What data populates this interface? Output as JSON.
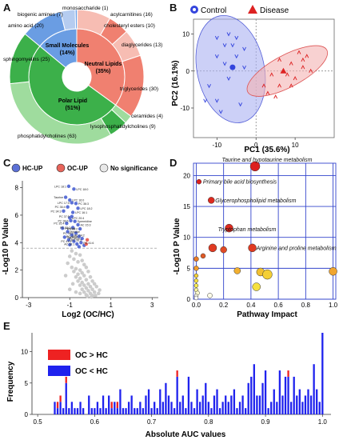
{
  "panels": {
    "A": "A",
    "B": "B",
    "C": "C",
    "D": "D",
    "E": "E"
  },
  "colors": {
    "small_molecules": "#6a9de3",
    "neutral_lipids": "#f08070",
    "polar_lipid": "#3cb04a",
    "control": "#3344dd",
    "disease": "#dd2222",
    "hc_up": "#5b70d6",
    "oc_up": "#e8645a",
    "no_sig": "#cccccc",
    "grid_blue": "#3344cc",
    "auc_oc_gt_hc": "#ee2222",
    "auc_oc_lt_hc": "#1f22ee"
  },
  "chart_data": [
    {
      "type": "pie",
      "panel": "A",
      "inner_ring": [
        {
          "label": "Small Molecules",
          "percent": "(14%)",
          "value": 14
        },
        {
          "label": "Neutral Lipids",
          "percent": "(35%)",
          "value": 35
        },
        {
          "label": "Polar Lipid",
          "percent": "(51%)",
          "value": 51
        }
      ],
      "outer_ring": [
        {
          "label": "amino acid (20)",
          "value": 20,
          "group": "small"
        },
        {
          "label": "biogenic amines (7)",
          "value": 7,
          "group": "small"
        },
        {
          "label": "monosaccharide (1)",
          "value": 1,
          "group": "small"
        },
        {
          "label": "acylcarnitines (16)",
          "value": 16,
          "group": "neutral"
        },
        {
          "label": "cholesteryl esters (10)",
          "value": 10,
          "group": "neutral"
        },
        {
          "label": "diaglycerides (13)",
          "value": 13,
          "group": "neutral"
        },
        {
          "label": "triglycerides (30)",
          "value": 30,
          "group": "neutral"
        },
        {
          "label": "ceramides (4)",
          "value": 4,
          "group": "polar"
        },
        {
          "label": "lysophosphatidylcholines (9)",
          "value": 9,
          "group": "polar"
        },
        {
          "label": "phosphatidylcholines (63)",
          "value": 63,
          "group": "polar"
        },
        {
          "label": "sphingomyelins (25)",
          "value": 25,
          "group": "polar"
        }
      ]
    },
    {
      "type": "scatter",
      "panel": "B",
      "legend": [
        "Control",
        "Disease"
      ],
      "xlabel": "PC1 (35.6%)",
      "ylabel": "PC2 (16.1%)",
      "xlim": [
        -16,
        20
      ],
      "ylim": [
        -18,
        14
      ],
      "xticks": [
        -10,
        0,
        10
      ],
      "yticks": [
        -10,
        0,
        10
      ],
      "series": [
        {
          "name": "Control",
          "centroid": [
            -6,
            1
          ],
          "points": [
            [
              -10,
              9
            ],
            [
              -7,
              10
            ],
            [
              -5,
              9
            ],
            [
              -8,
              7
            ],
            [
              -6,
              7
            ],
            [
              -3,
              6
            ],
            [
              -10,
              4
            ],
            [
              -5,
              4
            ],
            [
              -8,
              2
            ],
            [
              -7,
              -2
            ],
            [
              -12,
              -4
            ],
            [
              -13,
              -8
            ],
            [
              -10,
              -8
            ],
            [
              -4,
              -9
            ],
            [
              -9,
              -11
            ],
            [
              -3,
              1
            ]
          ]
        },
        {
          "name": "Disease",
          "centroid": [
            7,
            0
          ],
          "points": [
            [
              11,
              5
            ],
            [
              13,
              4
            ],
            [
              6,
              3
            ],
            [
              9,
              2
            ],
            [
              12,
              1
            ],
            [
              4,
              -1
            ],
            [
              8,
              -1
            ],
            [
              10,
              -2
            ],
            [
              14,
              0
            ],
            [
              2,
              -4
            ],
            [
              6,
              -4
            ],
            [
              9,
              -4
            ],
            [
              3,
              -6
            ],
            [
              5,
              -7
            ],
            [
              12,
              3
            ]
          ]
        }
      ]
    },
    {
      "type": "scatter",
      "panel": "C",
      "legend": [
        "HC-UP",
        "OC-UP",
        "No significance"
      ],
      "xlabel": "Log2 (OC/HC)",
      "ylabel": "-Log10 P Value",
      "xlim": [
        -3.3,
        3.3
      ],
      "ylim": [
        0,
        8.5
      ],
      "xticks": [
        -3,
        -1,
        1,
        3
      ],
      "yticks": [
        0,
        2,
        4,
        6,
        8
      ],
      "threshold": 3.6,
      "labels": [
        "LPC 18:1",
        "LPC 18:0",
        "Taurine",
        "LPC 16:0",
        "LPC 17:0",
        "PC 36:3",
        "PC 36:4",
        "LPC 18:2",
        "PC 34:3",
        "LPC 16:1",
        "PC 37:5",
        "LPC 20:4",
        "PC 38:6",
        "Spermidine",
        "PC 35:4",
        "AC 15:3",
        "PC 32:2",
        "PC 40:6",
        "PC 36:2",
        "Hexose",
        "PC 38:4",
        "PC 34:2",
        "PC 40:5",
        "SM 22:1",
        "PC 40:4",
        "PC 36:3",
        "PC 41:5",
        "PC 41:6",
        "AC 16:1"
      ],
      "hc_up": [
        [
          -1.05,
          8.1
        ],
        [
          -0.8,
          7.9
        ],
        [
          -1.2,
          7.3
        ],
        [
          -1.0,
          7.1
        ],
        [
          -0.9,
          6.9
        ],
        [
          -0.7,
          6.85
        ],
        [
          -1.1,
          6.6
        ],
        [
          -0.6,
          6.5
        ],
        [
          -1.3,
          6.3
        ],
        [
          -0.85,
          6.2
        ],
        [
          -0.9,
          5.9
        ],
        [
          -1.0,
          5.8
        ],
        [
          -0.95,
          5.6
        ],
        [
          -0.75,
          5.55
        ],
        [
          -1.15,
          5.4
        ],
        [
          -0.6,
          5.3
        ],
        [
          -0.85,
          5.1
        ],
        [
          -1.35,
          5.05
        ],
        [
          -0.5,
          5.0
        ],
        [
          -1.1,
          4.8
        ],
        [
          -0.7,
          4.7
        ],
        [
          -0.9,
          4.55
        ],
        [
          -0.55,
          4.45
        ],
        [
          -1.25,
          4.4
        ],
        [
          -0.4,
          4.3
        ],
        [
          -1.05,
          4.2
        ],
        [
          -0.8,
          4.1
        ],
        [
          -0.45,
          4.0
        ],
        [
          -0.65,
          3.9
        ],
        [
          -1.0,
          3.85
        ],
        [
          -0.3,
          3.8
        ],
        [
          -0.55,
          3.7
        ]
      ],
      "oc_up": [
        [
          -0.15,
          4.2
        ],
        [
          -0.2,
          3.9
        ]
      ],
      "no_sig": [
        [
          -0.9,
          3.4
        ],
        [
          -0.7,
          3.2
        ],
        [
          -1.0,
          3.0
        ],
        [
          -0.5,
          3.1
        ],
        [
          -0.8,
          2.8
        ],
        [
          -0.6,
          2.6
        ],
        [
          -1.1,
          2.5
        ],
        [
          -0.4,
          2.7
        ],
        [
          -0.3,
          2.4
        ],
        [
          -0.9,
          2.2
        ],
        [
          -0.7,
          2.1
        ],
        [
          -0.5,
          2.0
        ],
        [
          -0.2,
          2.2
        ],
        [
          -0.8,
          1.9
        ],
        [
          -0.6,
          1.7
        ],
        [
          -0.4,
          1.8
        ],
        [
          -0.1,
          1.9
        ],
        [
          -0.3,
          1.6
        ],
        [
          -0.7,
          1.5
        ],
        [
          -0.5,
          1.4
        ],
        [
          0.0,
          1.5
        ],
        [
          -0.2,
          1.3
        ],
        [
          0.1,
          1.2
        ],
        [
          -0.6,
          1.2
        ],
        [
          -0.4,
          1.1
        ],
        [
          -0.1,
          1.0
        ],
        [
          0.2,
          1.0
        ],
        [
          -0.3,
          0.9
        ],
        [
          0.0,
          0.8
        ],
        [
          -0.5,
          0.9
        ],
        [
          -0.2,
          0.7
        ],
        [
          0.1,
          0.6
        ],
        [
          0.3,
          0.8
        ],
        [
          -0.4,
          0.6
        ],
        [
          -0.1,
          0.5
        ],
        [
          0.2,
          0.4
        ],
        [
          -0.3,
          0.4
        ],
        [
          0.0,
          0.3
        ],
        [
          0.4,
          0.3
        ],
        [
          -0.2,
          0.2
        ],
        [
          0.1,
          0.15
        ],
        [
          -0.5,
          0.3
        ],
        [
          0.25,
          0.15
        ],
        [
          -0.15,
          0.1
        ],
        [
          0.05,
          0.05
        ],
        [
          -0.7,
          0.4
        ],
        [
          0.45,
          0.55
        ],
        [
          -0.85,
          1.0
        ],
        [
          -1.2,
          1.6
        ],
        [
          -1.0,
          0.6
        ]
      ]
    },
    {
      "type": "scatter",
      "panel": "D",
      "xlabel": "Pathway Impact",
      "ylabel": "-Log10 P Value",
      "xlim": [
        -0.02,
        1.02
      ],
      "ylim": [
        0,
        22
      ],
      "xticks": [
        0.0,
        0.2,
        0.4,
        0.6,
        0.8,
        1.0
      ],
      "yticks": [
        0,
        5,
        10,
        15,
        20
      ],
      "annotations": [
        {
          "text": "Taurine and hypotaurine metabolism",
          "x": 0.43,
          "y": 21.5
        },
        {
          "text": "Primary bile acid biosynthesis",
          "x": 0.02,
          "y": 19
        },
        {
          "text": "Glycerophospholipid metabolism",
          "x": 0.11,
          "y": 16
        },
        {
          "text": "Tryptophan metabolism",
          "x": 0.13,
          "y": 11.3
        },
        {
          "text": "Arginine and proline metabolism",
          "x": 0.41,
          "y": 8.3
        }
      ],
      "points": [
        {
          "x": 0.43,
          "y": 21.5,
          "r": 6,
          "color": "#dd1f1f"
        },
        {
          "x": 0.02,
          "y": 19.0,
          "r": 3,
          "color": "#dd1f1f"
        },
        {
          "x": 0.11,
          "y": 16.0,
          "r": 4,
          "color": "#dd2a1f"
        },
        {
          "x": 0.24,
          "y": 11.5,
          "r": 5,
          "color": "#dd2a1f"
        },
        {
          "x": 0.41,
          "y": 8.3,
          "r": 5,
          "color": "#e03a22"
        },
        {
          "x": 0.12,
          "y": 8.3,
          "r": 5,
          "color": "#e03a22"
        },
        {
          "x": 0.2,
          "y": 8.0,
          "r": 4,
          "color": "#e04a25"
        },
        {
          "x": 0.05,
          "y": 7.0,
          "r": 3,
          "color": "#e05a25"
        },
        {
          "x": 0.0,
          "y": 6.5,
          "r": 3,
          "color": "#e87a28"
        },
        {
          "x": 0.0,
          "y": 5.0,
          "r": 3,
          "color": "#f09a2a"
        },
        {
          "x": 0.3,
          "y": 4.6,
          "r": 4,
          "color": "#f2b030"
        },
        {
          "x": 0.47,
          "y": 4.4,
          "r": 5,
          "color": "#f2c030"
        },
        {
          "x": 0.52,
          "y": 4.0,
          "r": 6,
          "color": "#f4cf35"
        },
        {
          "x": 1.0,
          "y": 4.5,
          "r": 5,
          "color": "#f0a530"
        },
        {
          "x": 0.44,
          "y": 2.0,
          "r": 5,
          "color": "#f6e040"
        },
        {
          "x": 0.0,
          "y": 3.8,
          "r": 2.5,
          "color": "#f4d038"
        },
        {
          "x": 0.0,
          "y": 3.0,
          "r": 2.5,
          "color": "#f6e040"
        },
        {
          "x": 0.0,
          "y": 2.2,
          "r": 2.5,
          "color": "#f8ec50"
        },
        {
          "x": 0.0,
          "y": 1.5,
          "r": 2.5,
          "color": "#fbf5a0"
        },
        {
          "x": 0.01,
          "y": 1.0,
          "r": 2.5,
          "color": "#fdfbd0"
        },
        {
          "x": 0.0,
          "y": 0.5,
          "r": 2.5,
          "color": "#fffde8"
        },
        {
          "x": 0.1,
          "y": 0.6,
          "r": 3,
          "color": "#fffde8"
        },
        {
          "x": 0.0,
          "y": 0.2,
          "r": 2.5,
          "color": "#ffffff"
        }
      ]
    },
    {
      "type": "bar",
      "panel": "E",
      "xlabel": "Absolute AUC values",
      "ylabel": "Frequency",
      "xlim": [
        0.49,
        1.015
      ],
      "ylim": [
        0,
        13
      ],
      "xticks": [
        0.5,
        0.6,
        0.7,
        0.8,
        0.9,
        1.0
      ],
      "yticks": [
        0,
        5,
        10
      ],
      "legend": [
        "OC > HC",
        "OC < HC"
      ],
      "bins": [
        0.53,
        0.535,
        0.54,
        0.545,
        0.55,
        0.555,
        0.56,
        0.565,
        0.57,
        0.575,
        0.58,
        0.59,
        0.595,
        0.6,
        0.605,
        0.61,
        0.615,
        0.62,
        0.625,
        0.63,
        0.635,
        0.64,
        0.645,
        0.65,
        0.655,
        0.66,
        0.665,
        0.67,
        0.675,
        0.68,
        0.685,
        0.69,
        0.695,
        0.7,
        0.705,
        0.71,
        0.715,
        0.72,
        0.725,
        0.73,
        0.735,
        0.74,
        0.745,
        0.75,
        0.755,
        0.76,
        0.765,
        0.77,
        0.775,
        0.78,
        0.785,
        0.79,
        0.795,
        0.8,
        0.805,
        0.81,
        0.815,
        0.82,
        0.825,
        0.83,
        0.835,
        0.84,
        0.845,
        0.85,
        0.855,
        0.86,
        0.865,
        0.87,
        0.875,
        0.88,
        0.885,
        0.89,
        0.895,
        0.9,
        0.905,
        0.91,
        0.915,
        0.92,
        0.925,
        0.93,
        0.935,
        0.94,
        0.945,
        0.95,
        0.955,
        0.96,
        0.965,
        0.97,
        0.975,
        0.98,
        0.985,
        0.99,
        0.995,
        1.0
      ],
      "series": [
        {
          "name": "OC > HC",
          "values": [
            0,
            1,
            1,
            0,
            1,
            0,
            0,
            0,
            0,
            0,
            0,
            0,
            0,
            0,
            0,
            0,
            0,
            0,
            0,
            1,
            0,
            1,
            0,
            0,
            0,
            0,
            0,
            0,
            0,
            0,
            0,
            0,
            0,
            0,
            0,
            0,
            0,
            0,
            0,
            0,
            0,
            0,
            1,
            0,
            0,
            0,
            0,
            0,
            0,
            0,
            0,
            0,
            0,
            0,
            0,
            0,
            0,
            0,
            0,
            0,
            0,
            0,
            0,
            0,
            0,
            0,
            0,
            0,
            0,
            0,
            0,
            0,
            0,
            0,
            0,
            0,
            0,
            0,
            0,
            0,
            0,
            1,
            0,
            0,
            0,
            0,
            0,
            0,
            0,
            0,
            0,
            0,
            0,
            0
          ]
        },
        {
          "name": "OC < HC",
          "values": [
            2,
            1,
            2,
            1,
            5,
            1,
            2,
            1,
            1,
            2,
            1,
            3,
            1,
            1,
            2,
            1,
            3,
            1,
            3,
            1,
            2,
            1,
            4,
            1,
            1,
            2,
            3,
            1,
            1,
            2,
            1,
            3,
            4,
            1,
            2,
            1,
            4,
            2,
            5,
            3,
            2,
            1,
            6,
            2,
            3,
            1,
            6,
            2,
            1,
            4,
            2,
            3,
            5,
            2,
            1,
            3,
            4,
            1,
            2,
            3,
            2,
            3,
            4,
            1,
            2,
            3,
            1,
            5,
            6,
            8,
            3,
            3,
            5,
            7,
            1,
            2,
            4,
            2,
            7,
            3,
            6,
            6,
            2,
            6,
            3,
            4,
            2,
            3,
            4,
            3,
            8,
            4,
            2,
            13
          ]
        }
      ]
    }
  ]
}
